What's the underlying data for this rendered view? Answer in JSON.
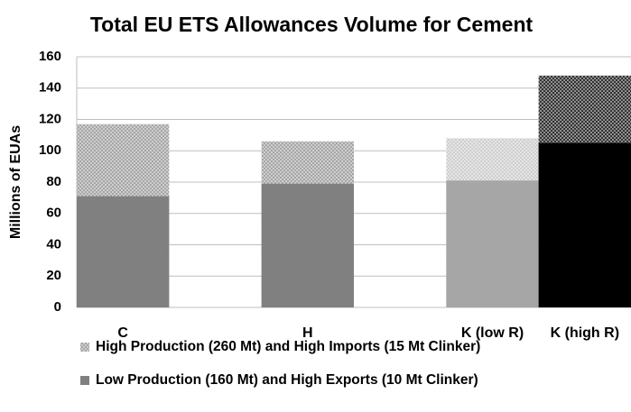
{
  "chart_data": {
    "type": "bar",
    "title": "Total EU ETS Allowances Volume for Cement",
    "ylabel": "Millions of EUAs",
    "categories": [
      "C",
      null,
      "H",
      null,
      "K (low R)",
      "K (high R)"
    ],
    "series": [
      {
        "name": "High Production (260 Mt) and High Imports (15 Mt Clinker)",
        "colors": [
          "#a6a6a6",
          null,
          "#a6a6a6",
          null,
          "#cfcfcf",
          "#333333"
        ],
        "pattern": true,
        "values": [
          117,
          null,
          106,
          null,
          108,
          148
        ]
      },
      {
        "name": "Low Production (160 Mt) and High Exports (10 Mt Clinker)",
        "colors": [
          "#808080",
          null,
          "#808080",
          null,
          "#a6a6a6",
          "#000000"
        ],
        "pattern": false,
        "values": [
          71,
          null,
          79,
          null,
          81,
          105
        ]
      }
    ],
    "ylim": [
      0,
      160
    ],
    "yticks": [
      0,
      20,
      40,
      60,
      80,
      100,
      120,
      140,
      160
    ],
    "grid": true
  }
}
